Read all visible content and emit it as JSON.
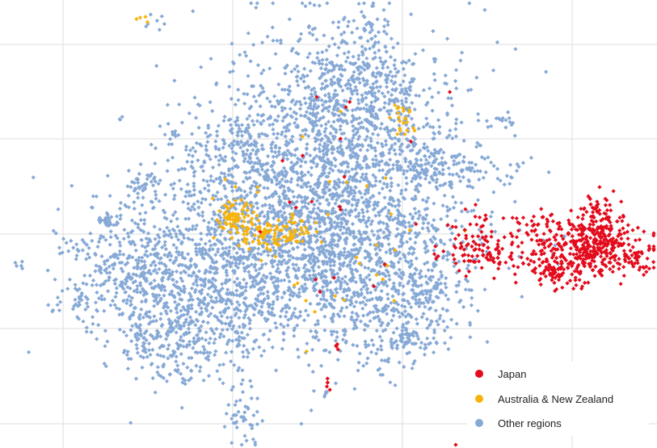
{
  "chart_data": {
    "type": "scatter",
    "title": "",
    "xlabel": "",
    "ylabel": "",
    "grid": true,
    "legend_position": "bottom-right",
    "axes_visible": false,
    "series": [
      {
        "name": "Japan",
        "color": "#e30b1c",
        "marker": "diamond",
        "clusters": [
          {
            "cx": 716,
            "cy": 310,
            "sx": 42,
            "sy": 18,
            "n": 330
          },
          {
            "cx": 748,
            "cy": 292,
            "sx": 18,
            "sy": 22,
            "n": 110
          },
          {
            "cx": 738,
            "cy": 258,
            "sx": 7,
            "sy": 10,
            "n": 35
          },
          {
            "cx": 690,
            "cy": 340,
            "sx": 16,
            "sy": 9,
            "n": 55
          },
          {
            "cx": 600,
            "cy": 312,
            "sx": 26,
            "sy": 14,
            "n": 75
          },
          {
            "cx": 575,
            "cy": 300,
            "sx": 16,
            "sy": 20,
            "n": 28
          },
          {
            "cx": 660,
            "cy": 275,
            "sx": 35,
            "sy": 10,
            "n": 30
          },
          {
            "cx": 785,
            "cy": 320,
            "sx": 10,
            "sy": 10,
            "n": 25
          },
          {
            "cx": 430,
            "cy": 260,
            "sx": 70,
            "sy": 80,
            "n": 22
          },
          {
            "cx": 417,
            "cy": 430,
            "sx": 1,
            "sy": 4,
            "n": 4
          },
          {
            "cx": 406,
            "cy": 478,
            "sx": 3,
            "sy": 4,
            "n": 5
          }
        ]
      },
      {
        "name": "Australia & New Zealand",
        "color": "#f7b30b",
        "marker": "diamond",
        "clusters": [
          {
            "cx": 290,
            "cy": 268,
            "sx": 11,
            "sy": 9,
            "n": 60
          },
          {
            "cx": 332,
            "cy": 292,
            "sx": 22,
            "sy": 10,
            "n": 85
          },
          {
            "cx": 360,
            "cy": 285,
            "sx": 10,
            "sy": 10,
            "n": 25
          },
          {
            "cx": 500,
            "cy": 145,
            "sx": 9,
            "sy": 10,
            "n": 22
          },
          {
            "cx": 178,
            "cy": 20,
            "sx": 3,
            "sy": 3,
            "n": 4
          },
          {
            "cx": 440,
            "cy": 300,
            "sx": 55,
            "sy": 55,
            "n": 30
          },
          {
            "cx": 300,
            "cy": 230,
            "sx": 20,
            "sy": 15,
            "n": 8
          }
        ]
      },
      {
        "name": "Other regions",
        "color": "#87a9d6",
        "marker": "diamond",
        "clusters": [
          {
            "cx": 420,
            "cy": 230,
            "sx": 80,
            "sy": 85,
            "n": 1500
          },
          {
            "cx": 340,
            "cy": 310,
            "sx": 90,
            "sy": 60,
            "n": 900
          },
          {
            "cx": 250,
            "cy": 340,
            "sx": 60,
            "sy": 50,
            "n": 500
          },
          {
            "cx": 440,
            "cy": 130,
            "sx": 55,
            "sy": 45,
            "n": 450
          },
          {
            "cx": 150,
            "cy": 330,
            "sx": 40,
            "sy": 40,
            "n": 260
          },
          {
            "cx": 230,
            "cy": 420,
            "sx": 45,
            "sy": 28,
            "n": 260
          },
          {
            "cx": 470,
            "cy": 370,
            "sx": 55,
            "sy": 40,
            "n": 330
          },
          {
            "cx": 505,
            "cy": 420,
            "sx": 15,
            "sy": 8,
            "n": 50
          },
          {
            "cx": 520,
            "cy": 360,
            "sx": 15,
            "sy": 20,
            "n": 60
          },
          {
            "cx": 300,
            "cy": 200,
            "sx": 40,
            "sy": 40,
            "n": 250
          },
          {
            "cx": 460,
            "cy": 60,
            "sx": 12,
            "sy": 30,
            "n": 70
          },
          {
            "cx": 410,
            "cy": 80,
            "sx": 10,
            "sy": 6,
            "n": 25
          },
          {
            "cx": 300,
            "cy": 515,
            "sx": 12,
            "sy": 18,
            "n": 45
          },
          {
            "cx": 590,
            "cy": 210,
            "sx": 25,
            "sy": 10,
            "n": 45
          },
          {
            "cx": 180,
            "cy": 228,
            "sx": 10,
            "sy": 6,
            "n": 25
          },
          {
            "cx": 130,
            "cy": 272,
            "sx": 6,
            "sy": 4,
            "n": 22
          },
          {
            "cx": 95,
            "cy": 370,
            "sx": 8,
            "sy": 10,
            "n": 18
          },
          {
            "cx": 24,
            "cy": 326,
            "sx": 3,
            "sy": 2,
            "n": 5
          },
          {
            "cx": 625,
            "cy": 148,
            "sx": 8,
            "sy": 5,
            "n": 12
          },
          {
            "cx": 372,
            "cy": 92,
            "sx": 5,
            "sy": 5,
            "n": 8
          },
          {
            "cx": 385,
            "cy": 35,
            "sx": 3,
            "sy": 3,
            "n": 4
          },
          {
            "cx": 190,
            "cy": 30,
            "sx": 12,
            "sy": 12,
            "n": 7
          },
          {
            "cx": 530,
            "cy": 200,
            "sx": 15,
            "sy": 20,
            "n": 80
          },
          {
            "cx": 210,
            "cy": 165,
            "sx": 6,
            "sy": 6,
            "n": 6
          },
          {
            "cx": 150,
            "cy": 148,
            "sx": 2,
            "sy": 2,
            "n": 3
          },
          {
            "cx": 680,
            "cy": 320,
            "sx": 45,
            "sy": 20,
            "n": 8
          },
          {
            "cx": 560,
            "cy": 330,
            "sx": 20,
            "sy": 25,
            "n": 14
          },
          {
            "cx": 405,
            "cy": 485,
            "sx": 3,
            "sy": 3,
            "n": 4
          },
          {
            "cx": 470,
            "cy": 450,
            "sx": 12,
            "sy": 6,
            "n": 10
          }
        ]
      }
    ]
  }
}
